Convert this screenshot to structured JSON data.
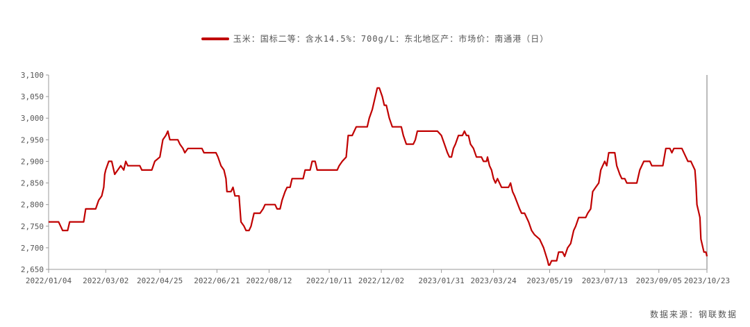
{
  "legend": {
    "series_label": "玉米：国标二等：含水14.5%：700g/L：东北地区产：市场价：南通港（日）",
    "color": "#c00000"
  },
  "source": "数据来源：钢联数据",
  "chart_data": {
    "type": "line",
    "ylim": [
      2650,
      3100
    ],
    "yticks": [
      2650,
      2700,
      2750,
      2800,
      2850,
      2900,
      2950,
      3000,
      3050,
      3100
    ],
    "ytick_labels": [
      "2,650",
      "2,700",
      "2,750",
      "2,800",
      "2,850",
      "2,900",
      "2,950",
      "3,000",
      "3,050",
      "3,100"
    ],
    "xlim": [
      "2022-01-04",
      "2023-10-23"
    ],
    "xticks": [
      "2022-01-04",
      "2022-03-02",
      "2022-04-25",
      "2022-06-21",
      "2022-08-12",
      "2022-10-11",
      "2022-12-02",
      "2023-01-31",
      "2023-03-24",
      "2023-05-19",
      "2023-07-13",
      "2023-09-05",
      "2023-10-23"
    ],
    "xtick_labels": [
      "2022/01/04",
      "2022/03/02",
      "2022/04/25",
      "2022/06/21",
      "2022/08/12",
      "2022/10/11",
      "2022/12/02",
      "2023/01/31",
      "2023/03/24",
      "2023/05/19",
      "2023/07/13",
      "2023/09/05",
      "2023/10/23"
    ],
    "series": [
      {
        "color": "#c00000",
        "points": [
          [
            "2022-01-04",
            2760
          ],
          [
            "2022-01-14",
            2760
          ],
          [
            "2022-01-16",
            2750
          ],
          [
            "2022-01-18",
            2740
          ],
          [
            "2022-01-23",
            2740
          ],
          [
            "2022-01-25",
            2760
          ],
          [
            "2022-02-08",
            2760
          ],
          [
            "2022-02-10",
            2790
          ],
          [
            "2022-02-20",
            2790
          ],
          [
            "2022-02-23",
            2810
          ],
          [
            "2022-02-26",
            2820
          ],
          [
            "2022-02-28",
            2840
          ],
          [
            "2022-03-01",
            2870
          ],
          [
            "2022-03-02",
            2880
          ],
          [
            "2022-03-05",
            2900
          ],
          [
            "2022-03-08",
            2900
          ],
          [
            "2022-03-11",
            2870
          ],
          [
            "2022-03-14",
            2880
          ],
          [
            "2022-03-17",
            2890
          ],
          [
            "2022-03-20",
            2880
          ],
          [
            "2022-03-22",
            2900
          ],
          [
            "2022-03-24",
            2890
          ],
          [
            "2022-04-05",
            2890
          ],
          [
            "2022-04-07",
            2880
          ],
          [
            "2022-04-17",
            2880
          ],
          [
            "2022-04-20",
            2900
          ],
          [
            "2022-04-25",
            2910
          ],
          [
            "2022-04-28",
            2950
          ],
          [
            "2022-05-01",
            2960
          ],
          [
            "2022-05-03",
            2970
          ],
          [
            "2022-05-05",
            2950
          ],
          [
            "2022-05-13",
            2950
          ],
          [
            "2022-05-15",
            2940
          ],
          [
            "2022-05-18",
            2930
          ],
          [
            "2022-05-20",
            2920
          ],
          [
            "2022-05-23",
            2930
          ],
          [
            "2022-06-06",
            2930
          ],
          [
            "2022-06-08",
            2920
          ],
          [
            "2022-06-20",
            2920
          ],
          [
            "2022-06-22",
            2910
          ],
          [
            "2022-06-25",
            2890
          ],
          [
            "2022-06-28",
            2880
          ],
          [
            "2022-06-30",
            2860
          ],
          [
            "2022-07-01",
            2830
          ],
          [
            "2022-07-05",
            2830
          ],
          [
            "2022-07-07",
            2840
          ],
          [
            "2022-07-09",
            2820
          ],
          [
            "2022-07-13",
            2820
          ],
          [
            "2022-07-15",
            2760
          ],
          [
            "2022-07-18",
            2750
          ],
          [
            "2022-07-20",
            2740
          ],
          [
            "2022-07-23",
            2740
          ],
          [
            "2022-07-25",
            2750
          ],
          [
            "2022-07-28",
            2780
          ],
          [
            "2022-08-03",
            2780
          ],
          [
            "2022-08-06",
            2790
          ],
          [
            "2022-08-08",
            2800
          ],
          [
            "2022-08-18",
            2800
          ],
          [
            "2022-08-20",
            2790
          ],
          [
            "2022-08-23",
            2790
          ],
          [
            "2022-08-25",
            2810
          ],
          [
            "2022-08-28",
            2830
          ],
          [
            "2022-08-30",
            2840
          ],
          [
            "2022-09-02",
            2840
          ],
          [
            "2022-09-04",
            2860
          ],
          [
            "2022-09-15",
            2860
          ],
          [
            "2022-09-17",
            2880
          ],
          [
            "2022-09-22",
            2880
          ],
          [
            "2022-09-24",
            2900
          ],
          [
            "2022-09-27",
            2900
          ],
          [
            "2022-09-29",
            2880
          ],
          [
            "2022-10-19",
            2880
          ],
          [
            "2022-10-21",
            2890
          ],
          [
            "2022-10-24",
            2900
          ],
          [
            "2022-10-28",
            2910
          ],
          [
            "2022-10-30",
            2960
          ],
          [
            "2022-11-03",
            2960
          ],
          [
            "2022-11-05",
            2970
          ],
          [
            "2022-11-07",
            2980
          ],
          [
            "2022-11-18",
            2980
          ],
          [
            "2022-11-20",
            3000
          ],
          [
            "2022-11-23",
            3020
          ],
          [
            "2022-11-26",
            3050
          ],
          [
            "2022-11-28",
            3070
          ],
          [
            "2022-11-30",
            3070
          ],
          [
            "2022-12-03",
            3050
          ],
          [
            "2022-12-05",
            3030
          ],
          [
            "2022-12-07",
            3030
          ],
          [
            "2022-12-10",
            3000
          ],
          [
            "2022-12-13",
            2980
          ],
          [
            "2022-12-22",
            2980
          ],
          [
            "2022-12-24",
            2960
          ],
          [
            "2022-12-27",
            2940
          ],
          [
            "2023-01-03",
            2940
          ],
          [
            "2023-01-05",
            2950
          ],
          [
            "2023-01-07",
            2970
          ],
          [
            "2023-01-27",
            2970
          ],
          [
            "2023-01-31",
            2960
          ],
          [
            "2023-02-03",
            2940
          ],
          [
            "2023-02-06",
            2920
          ],
          [
            "2023-02-08",
            2910
          ],
          [
            "2023-02-10",
            2910
          ],
          [
            "2023-02-12",
            2930
          ],
          [
            "2023-02-14",
            2940
          ],
          [
            "2023-02-17",
            2960
          ],
          [
            "2023-02-21",
            2960
          ],
          [
            "2023-02-23",
            2970
          ],
          [
            "2023-02-25",
            2960
          ],
          [
            "2023-02-27",
            2960
          ],
          [
            "2023-03-01",
            2940
          ],
          [
            "2023-03-04",
            2930
          ],
          [
            "2023-03-07",
            2910
          ],
          [
            "2023-03-12",
            2910
          ],
          [
            "2023-03-14",
            2900
          ],
          [
            "2023-03-17",
            2900
          ],
          [
            "2023-03-18",
            2910
          ],
          [
            "2023-03-20",
            2890
          ],
          [
            "2023-03-22",
            2880
          ],
          [
            "2023-03-24",
            2860
          ],
          [
            "2023-03-26",
            2850
          ],
          [
            "2023-03-28",
            2860
          ],
          [
            "2023-03-30",
            2850
          ],
          [
            "2023-04-01",
            2840
          ],
          [
            "2023-04-08",
            2840
          ],
          [
            "2023-04-10",
            2850
          ],
          [
            "2023-04-12",
            2830
          ],
          [
            "2023-04-14",
            2820
          ],
          [
            "2023-04-19",
            2790
          ],
          [
            "2023-04-21",
            2780
          ],
          [
            "2023-04-24",
            2780
          ],
          [
            "2023-04-28",
            2760
          ],
          [
            "2023-05-01",
            2740
          ],
          [
            "2023-05-04",
            2730
          ],
          [
            "2023-05-09",
            2720
          ],
          [
            "2023-05-13",
            2700
          ],
          [
            "2023-05-17",
            2670
          ],
          [
            "2023-05-18",
            2660
          ],
          [
            "2023-05-19",
            2660
          ],
          [
            "2023-05-21",
            2670
          ],
          [
            "2023-05-26",
            2670
          ],
          [
            "2023-05-28",
            2690
          ],
          [
            "2023-06-01",
            2690
          ],
          [
            "2023-06-03",
            2680
          ],
          [
            "2023-06-06",
            2700
          ],
          [
            "2023-06-09",
            2710
          ],
          [
            "2023-06-12",
            2740
          ],
          [
            "2023-06-14",
            2750
          ],
          [
            "2023-06-17",
            2770
          ],
          [
            "2023-06-24",
            2770
          ],
          [
            "2023-06-26",
            2780
          ],
          [
            "2023-06-29",
            2790
          ],
          [
            "2023-07-01",
            2830
          ],
          [
            "2023-07-04",
            2840
          ],
          [
            "2023-07-07",
            2850
          ],
          [
            "2023-07-09",
            2880
          ],
          [
            "2023-07-11",
            2890
          ],
          [
            "2023-07-13",
            2900
          ],
          [
            "2023-07-15",
            2890
          ],
          [
            "2023-07-17",
            2920
          ],
          [
            "2023-07-23",
            2920
          ],
          [
            "2023-07-25",
            2890
          ],
          [
            "2023-07-28",
            2870
          ],
          [
            "2023-07-30",
            2860
          ],
          [
            "2023-08-02",
            2860
          ],
          [
            "2023-08-04",
            2850
          ],
          [
            "2023-08-14",
            2850
          ],
          [
            "2023-08-17",
            2880
          ],
          [
            "2023-08-21",
            2900
          ],
          [
            "2023-08-27",
            2900
          ],
          [
            "2023-08-29",
            2890
          ],
          [
            "2023-09-09",
            2890
          ],
          [
            "2023-09-12",
            2930
          ],
          [
            "2023-09-16",
            2930
          ],
          [
            "2023-09-18",
            2920
          ],
          [
            "2023-09-20",
            2930
          ],
          [
            "2023-09-28",
            2930
          ],
          [
            "2023-10-02",
            2910
          ],
          [
            "2023-10-04",
            2900
          ],
          [
            "2023-10-07",
            2900
          ],
          [
            "2023-10-09",
            2890
          ],
          [
            "2023-10-11",
            2880
          ],
          [
            "2023-10-12",
            2850
          ],
          [
            "2023-10-13",
            2800
          ],
          [
            "2023-10-15",
            2780
          ],
          [
            "2023-10-16",
            2770
          ],
          [
            "2023-10-17",
            2720
          ],
          [
            "2023-10-18",
            2710
          ],
          [
            "2023-10-19",
            2700
          ],
          [
            "2023-10-20",
            2690
          ],
          [
            "2023-10-22",
            2690
          ],
          [
            "2023-10-23",
            2680
          ]
        ]
      }
    ]
  }
}
